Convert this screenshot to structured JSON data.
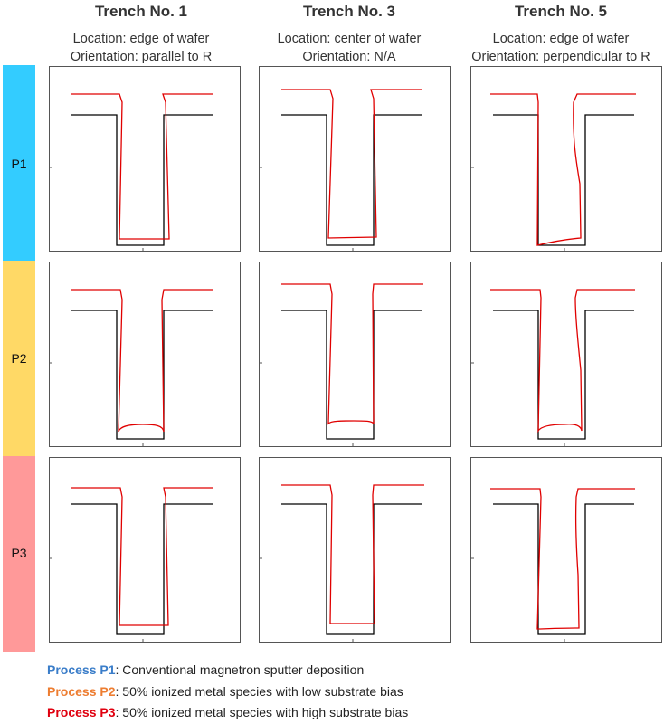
{
  "columns": [
    {
      "title": "Trench No. 1",
      "location": "Location: edge of wafer",
      "orientation": "Orientation: parallel to R"
    },
    {
      "title": "Trench No. 3",
      "location": "Location: center of wafer",
      "orientation": "Orientation: N/A"
    },
    {
      "title": "Trench No. 5",
      "location": "Location: edge of wafer",
      "orientation": "Orientation: perpendicular to R"
    }
  ],
  "rows": [
    {
      "label": "P1",
      "color": "#33CCFF"
    },
    {
      "label": "P2",
      "color": "#FFD966"
    },
    {
      "label": "P3",
      "color": "#FF9999"
    }
  ],
  "legend": [
    {
      "key": "Process P1",
      "text": ":  Conventional magnetron sputter deposition",
      "color": "#3A7DC9"
    },
    {
      "key": "Process P2",
      "text": ":  50% ionized metal species with low substrate bias",
      "color": "#ED7D31"
    },
    {
      "key": "Process P3",
      "text": ":  50% ionized metal species with high substrate bias",
      "color": "#E0000F"
    }
  ],
  "colors": {
    "trench_outline": "#000000",
    "deposited_profile": "#E00000",
    "panel_frame": "#555555"
  }
}
